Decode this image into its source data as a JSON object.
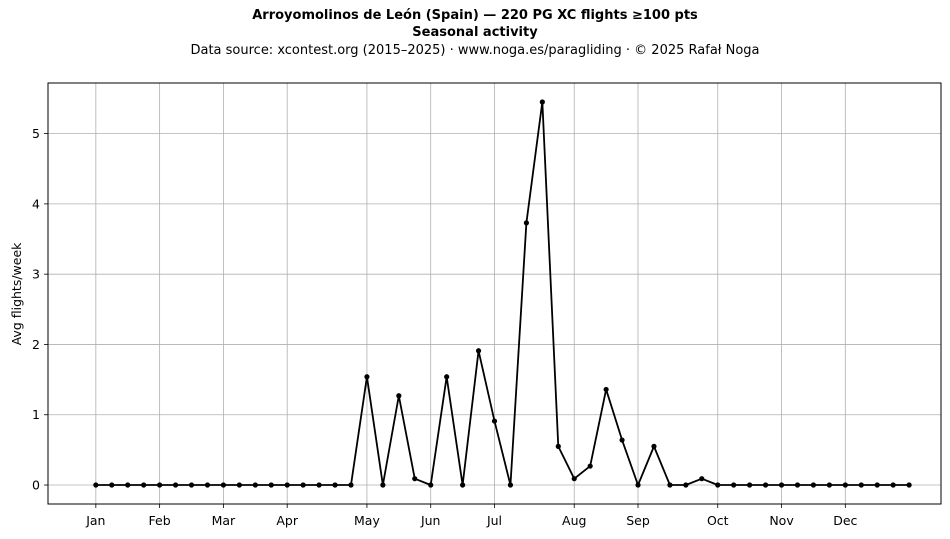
{
  "chart_data": {
    "type": "line",
    "title": "Arroyomolinos de León (Spain)  —  220 PG XC flights ≥100 pts",
    "subtitle": "Seasonal activity",
    "source": "Data source: xcontest.org (2015–2025)  ·  www.noga.es/paragliding  ·  © 2025 Rafał Noga",
    "xlabel": "",
    "ylabel": "Avg flights/week",
    "xlim": [
      -3,
      53
    ],
    "ylim": [
      -0.27,
      5.72
    ],
    "yticks": [
      0,
      1,
      2,
      3,
      4,
      5
    ],
    "grid": true,
    "xticks": [
      {
        "label": "Jan",
        "x": 0
      },
      {
        "label": "Feb",
        "x": 4
      },
      {
        "label": "Mar",
        "x": 8
      },
      {
        "label": "Apr",
        "x": 12
      },
      {
        "label": "May",
        "x": 17
      },
      {
        "label": "Jun",
        "x": 21
      },
      {
        "label": "Jul",
        "x": 25
      },
      {
        "label": "Aug",
        "x": 30
      },
      {
        "label": "Sep",
        "x": 34
      },
      {
        "label": "Oct",
        "x": 39
      },
      {
        "label": "Nov",
        "x": 43
      },
      {
        "label": "Dec",
        "x": 47
      }
    ],
    "x_unit": "week of year (0 = first week of January)",
    "series": [
      {
        "values": [
          0,
          0,
          0,
          0,
          0,
          0,
          0,
          0,
          0,
          0,
          0,
          0,
          0,
          0,
          0,
          0,
          0,
          1.54,
          0,
          1.27,
          0.09,
          0,
          1.54,
          0,
          1.91,
          0.91,
          0,
          3.73,
          5.45,
          0.55,
          0.09,
          0.27,
          1.36,
          0.64,
          0,
          0.55,
          0,
          0,
          0.09,
          0,
          0,
          0,
          0,
          0,
          0,
          0,
          0,
          0,
          0,
          0,
          0,
          0
        ],
        "color": "#000000"
      }
    ]
  }
}
